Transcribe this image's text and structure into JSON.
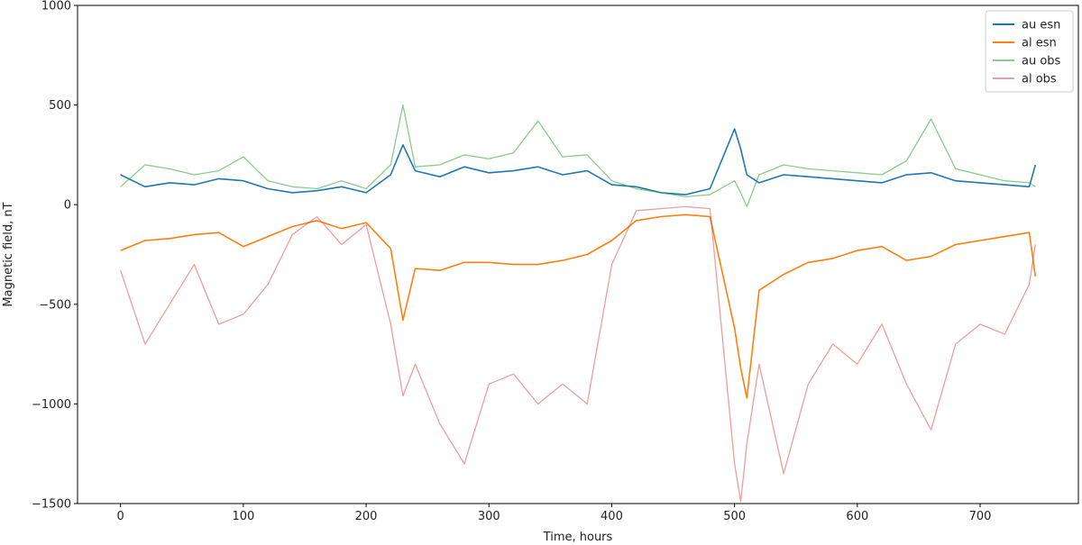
{
  "chart_data": {
    "type": "line",
    "xlabel": "Time, hours",
    "ylabel": "Magnetic field, nT",
    "xlim": [
      -35,
      780
    ],
    "ylim": [
      -1500,
      1000
    ],
    "x_ticks": [
      0,
      100,
      200,
      300,
      400,
      500,
      600,
      700
    ],
    "y_ticks": [
      -1500,
      -1000,
      -500,
      0,
      500,
      1000
    ],
    "x_tick_labels": [
      "0",
      "100",
      "200",
      "300",
      "400",
      "500",
      "600",
      "700"
    ],
    "y_tick_labels": [
      "−1500",
      "−1000",
      "−500",
      "0",
      "500",
      "1000"
    ],
    "grid": false,
    "legend_position": "top-right",
    "series": [
      {
        "name": "au esn",
        "color": "#1f77b4",
        "opacity": 1.0,
        "width": 1.6,
        "x": [
          0,
          20,
          40,
          60,
          80,
          100,
          120,
          140,
          160,
          180,
          200,
          220,
          230,
          240,
          260,
          280,
          300,
          320,
          340,
          360,
          380,
          400,
          420,
          440,
          460,
          480,
          500,
          505,
          510,
          520,
          540,
          560,
          580,
          600,
          620,
          640,
          660,
          680,
          700,
          720,
          740,
          745
        ],
        "y": [
          150,
          90,
          110,
          100,
          130,
          120,
          80,
          60,
          70,
          90,
          60,
          150,
          300,
          170,
          140,
          190,
          160,
          170,
          190,
          150,
          170,
          100,
          90,
          60,
          50,
          80,
          380,
          280,
          150,
          110,
          150,
          140,
          130,
          120,
          110,
          150,
          160,
          120,
          110,
          100,
          90,
          200
        ]
      },
      {
        "name": "al esn",
        "color": "#ff7f0e",
        "opacity": 1.0,
        "width": 1.6,
        "x": [
          0,
          20,
          40,
          60,
          80,
          100,
          120,
          140,
          160,
          180,
          200,
          220,
          230,
          240,
          260,
          280,
          300,
          320,
          340,
          360,
          380,
          400,
          420,
          440,
          460,
          480,
          500,
          505,
          510,
          520,
          540,
          560,
          580,
          600,
          620,
          640,
          660,
          680,
          700,
          720,
          740,
          745
        ],
        "y": [
          -230,
          -180,
          -170,
          -150,
          -140,
          -210,
          -160,
          -110,
          -80,
          -120,
          -90,
          -220,
          -580,
          -320,
          -330,
          -290,
          -290,
          -300,
          -300,
          -280,
          -250,
          -180,
          -80,
          -60,
          -50,
          -60,
          -620,
          -820,
          -970,
          -430,
          -350,
          -290,
          -270,
          -230,
          -210,
          -280,
          -260,
          -200,
          -180,
          -160,
          -140,
          -360
        ]
      },
      {
        "name": "au obs",
        "color": "#2ca02c",
        "opacity": 0.55,
        "width": 1.3,
        "x": [
          0,
          20,
          40,
          60,
          80,
          100,
          120,
          140,
          160,
          180,
          200,
          220,
          230,
          240,
          260,
          280,
          300,
          320,
          340,
          360,
          380,
          400,
          420,
          440,
          460,
          480,
          500,
          505,
          510,
          520,
          540,
          560,
          580,
          600,
          620,
          640,
          660,
          680,
          700,
          720,
          740,
          745
        ],
        "y": [
          90,
          200,
          180,
          150,
          170,
          240,
          120,
          90,
          80,
          120,
          80,
          200,
          500,
          190,
          200,
          250,
          230,
          260,
          420,
          240,
          250,
          120,
          80,
          60,
          40,
          50,
          120,
          60,
          -10,
          150,
          200,
          180,
          170,
          160,
          150,
          220,
          430,
          180,
          150,
          120,
          110,
          90
        ]
      },
      {
        "name": "al obs",
        "color": "#d62728",
        "opacity": 0.45,
        "width": 1.3,
        "x": [
          0,
          20,
          40,
          60,
          80,
          100,
          120,
          140,
          160,
          180,
          200,
          220,
          230,
          240,
          260,
          280,
          300,
          320,
          340,
          360,
          380,
          400,
          420,
          440,
          460,
          480,
          500,
          505,
          510,
          520,
          540,
          560,
          580,
          600,
          620,
          640,
          660,
          680,
          700,
          720,
          740,
          745
        ],
        "y": [
          -330,
          -700,
          -500,
          -300,
          -600,
          -550,
          -400,
          -150,
          -60,
          -200,
          -100,
          -600,
          -960,
          -800,
          -1100,
          -1300,
          -900,
          -850,
          -1000,
          -900,
          -1000,
          -300,
          -30,
          -20,
          -10,
          -20,
          -1300,
          -1490,
          -1200,
          -800,
          -1350,
          -900,
          -700,
          -800,
          -600,
          -900,
          -1130,
          -700,
          -600,
          -650,
          -400,
          -200
        ]
      }
    ]
  }
}
